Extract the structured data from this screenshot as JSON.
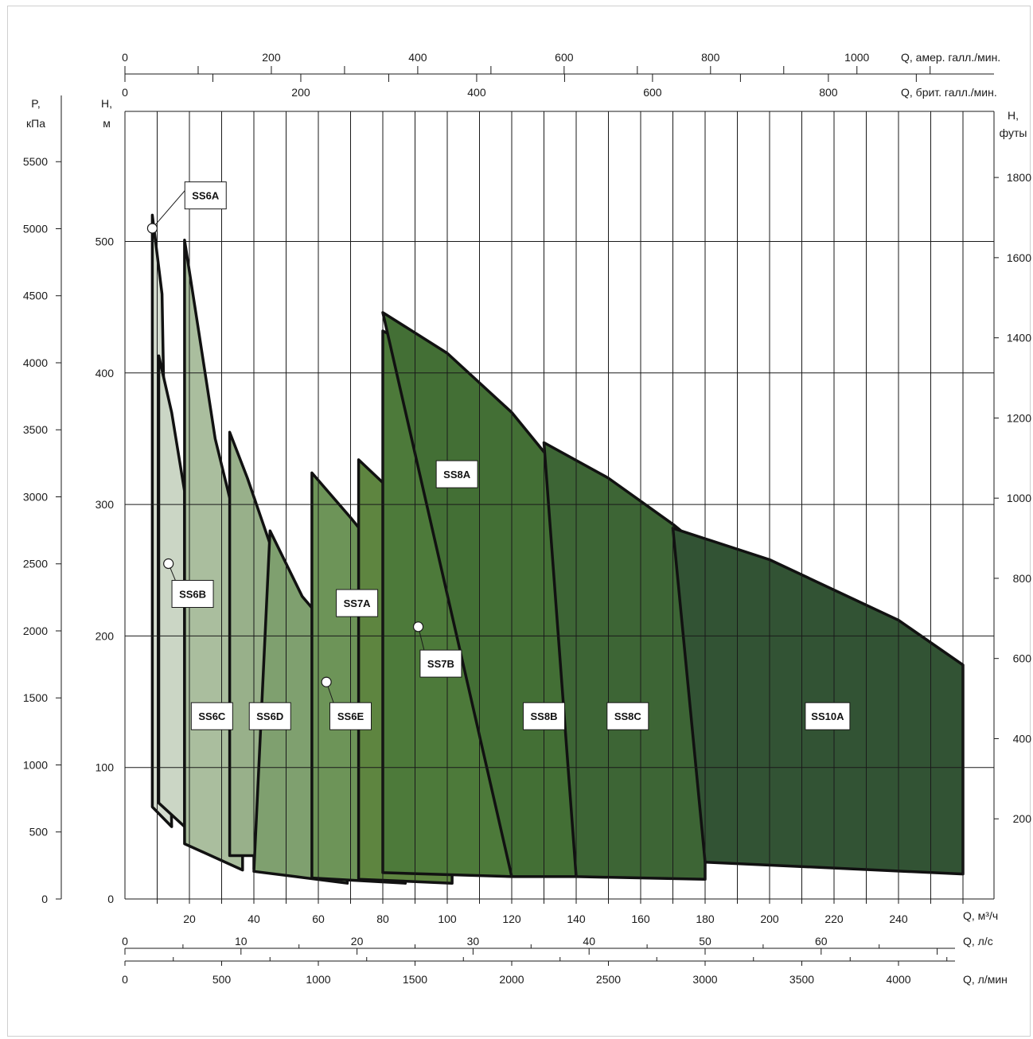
{
  "chart_data": {
    "type": "area",
    "title": "",
    "axes": {
      "left_pressure": {
        "label": [
          "P,",
          "кПа"
        ],
        "ticks": [
          0,
          500,
          1000,
          1500,
          2000,
          2500,
          3000,
          3500,
          4000,
          4500,
          5000,
          5500
        ]
      },
      "left_head_m": {
        "label": [
          "H,",
          "м"
        ],
        "ticks": [
          0,
          100,
          200,
          300,
          400,
          500
        ],
        "range": [
          0,
          600
        ]
      },
      "right_head_ft": {
        "label": [
          "H,",
          "футы"
        ],
        "ticks": [
          200,
          400,
          600,
          800,
          1000,
          1200,
          1400,
          1600,
          1800
        ]
      },
      "bottom_m3h": {
        "label": "Q, м³/ч",
        "ticks": [
          20,
          40,
          60,
          80,
          100,
          120,
          140,
          160,
          180,
          200,
          220,
          240
        ],
        "range": [
          0,
          270
        ]
      },
      "bottom_ls": {
        "label": "Q, л/с",
        "ticks": [
          0,
          10,
          20,
          30,
          40,
          50,
          60
        ]
      },
      "bottom_lmin": {
        "label": "Q, л/мин",
        "ticks": [
          0,
          500,
          1000,
          1500,
          2000,
          2500,
          3000,
          3500,
          4000
        ]
      },
      "top_usgpm": {
        "label": "Q, амер. галл./мин.",
        "ticks": [
          0,
          200,
          400,
          600,
          800,
          1000
        ]
      },
      "top_ukgpm": {
        "label": "Q, брит. галл./мин.",
        "ticks": [
          0,
          200,
          400,
          600,
          800
        ]
      }
    },
    "grid": true,
    "series": [
      {
        "name": "SS6A",
        "color": "#d4dccf",
        "polygon": [
          [
            8.5,
            520
          ],
          [
            11.5,
            460
          ],
          [
            14.5,
            55
          ],
          [
            8.5,
            70
          ]
        ]
      },
      {
        "name": "SS6B",
        "color": "#cbd6c5",
        "polygon": [
          [
            10.5,
            413
          ],
          [
            14.5,
            370
          ],
          [
            18.5,
            310
          ],
          [
            18.5,
            55
          ],
          [
            10.5,
            73
          ]
        ]
      },
      {
        "name": "SS6C",
        "color": "#aabe9e",
        "polygon": [
          [
            18.5,
            501
          ],
          [
            23,
            430
          ],
          [
            28,
            350
          ],
          [
            36.5,
            265
          ],
          [
            36.5,
            22
          ],
          [
            18.5,
            42
          ]
        ]
      },
      {
        "name": "SS6D",
        "color": "#98b08a",
        "polygon": [
          [
            32.5,
            355
          ],
          [
            38,
            320
          ],
          [
            45,
            270
          ],
          [
            52,
            225
          ],
          [
            58,
            209
          ],
          [
            58,
            19
          ],
          [
            40,
            23
          ],
          [
            40,
            33
          ],
          [
            32.5,
            33
          ]
        ]
      },
      {
        "name": "SS6E",
        "color": "#7fa06f",
        "polygon": [
          [
            45,
            280
          ],
          [
            55,
            230
          ],
          [
            62,
            210
          ],
          [
            69,
            190
          ],
          [
            69,
            12
          ],
          [
            53,
            17
          ],
          [
            40,
            21
          ]
        ]
      },
      {
        "name": "SS7A",
        "color": "#6d9458",
        "polygon": [
          [
            58,
            324
          ],
          [
            70,
            290
          ],
          [
            80,
            260
          ],
          [
            87,
            238
          ],
          [
            87,
            12
          ],
          [
            58,
            16
          ]
        ]
      },
      {
        "name": "SS7B",
        "color": "#5e8540",
        "polygon": [
          [
            72.5,
            334
          ],
          [
            85,
            305
          ],
          [
            95,
            278
          ],
          [
            101.5,
            249
          ],
          [
            101.5,
            12
          ],
          [
            72.5,
            15
          ]
        ]
      },
      {
        "name": "SS8A",
        "color": "#4d7a3a",
        "polygon": [
          [
            80,
            432
          ],
          [
            95,
            412
          ],
          [
            108,
            380
          ],
          [
            120,
            328
          ],
          [
            120,
            17
          ],
          [
            80,
            20
          ]
        ]
      },
      {
        "name": "SS8B",
        "color": "#436f35",
        "polygon": [
          [
            80,
            446
          ],
          [
            100,
            415
          ],
          [
            120,
            370
          ],
          [
            130,
            340
          ],
          [
            140,
            313
          ],
          [
            140,
            17
          ],
          [
            120,
            17
          ]
        ]
      },
      {
        "name": "SS8C",
        "color": "#3d6535",
        "polygon": [
          [
            130,
            347
          ],
          [
            150,
            320
          ],
          [
            170,
            285
          ],
          [
            180,
            265
          ],
          [
            180,
            15
          ],
          [
            140,
            17
          ]
        ]
      },
      {
        "name": "SS10A",
        "color": "#325334",
        "polygon": [
          [
            170,
            282
          ],
          [
            200,
            258
          ],
          [
            240,
            212
          ],
          [
            260,
            178
          ],
          [
            260,
            19
          ],
          [
            180,
            28
          ]
        ]
      }
    ],
    "labels": [
      {
        "text": "SS6A",
        "at": [
          25,
          535
        ],
        "marker": [
          8.5,
          510
        ]
      },
      {
        "text": "SS6B",
        "at": [
          21,
          232
        ],
        "marker": [
          13.5,
          255
        ]
      },
      {
        "text": "SS6C",
        "at": [
          27,
          139
        ]
      },
      {
        "text": "SS6D",
        "at": [
          45,
          139
        ]
      },
      {
        "text": "SS6E",
        "at": [
          70,
          139
        ],
        "marker": [
          62.5,
          165
        ]
      },
      {
        "text": "SS7A",
        "at": [
          72,
          225
        ]
      },
      {
        "text": "SS7B",
        "at": [
          98,
          179
        ],
        "marker": [
          91,
          207
        ]
      },
      {
        "text": "SS8A",
        "at": [
          103,
          323
        ]
      },
      {
        "text": "SS8B",
        "at": [
          130,
          139
        ]
      },
      {
        "text": "SS8C",
        "at": [
          156,
          139
        ]
      },
      {
        "text": "SS10A",
        "at": [
          218,
          139
        ]
      }
    ]
  }
}
